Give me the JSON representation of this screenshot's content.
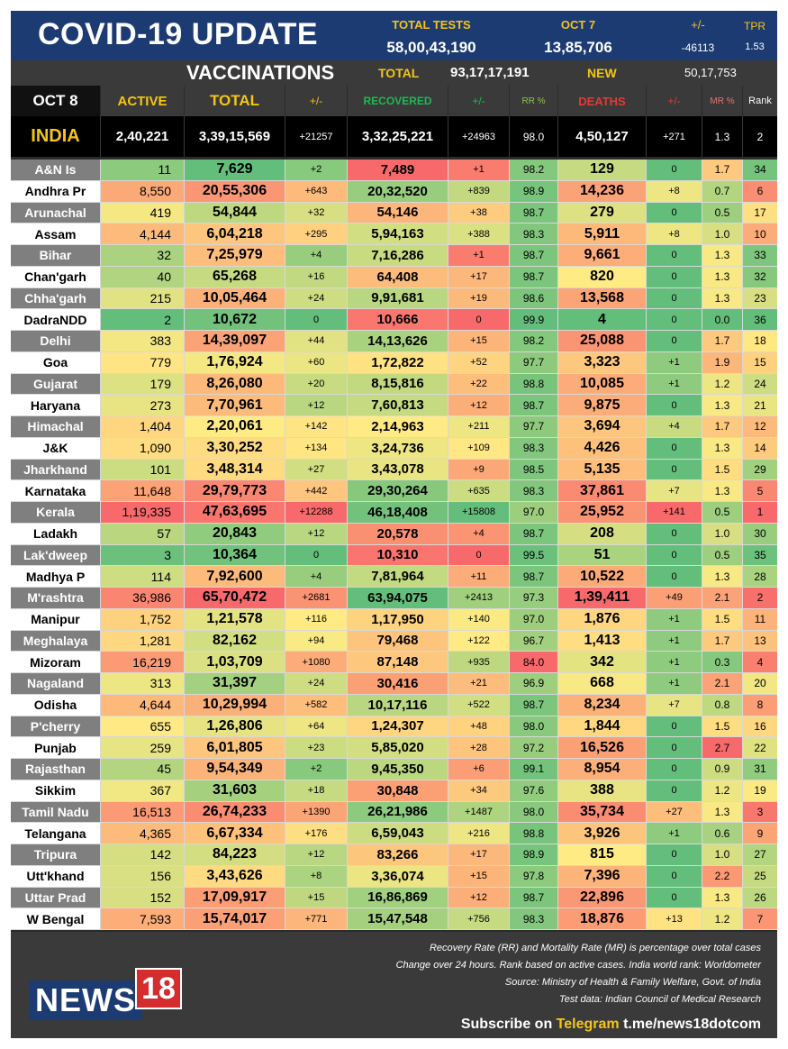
{
  "header": {
    "title": "COVID-19 UPDATE",
    "total_tests_label": "TOTAL TESTS",
    "total_tests_value": "58,00,43,190",
    "date_label": "OCT 7",
    "date_value": "13,85,706",
    "change_label": "+/-",
    "change_value": "-46113",
    "tpr_label": "TPR",
    "tpr_value": "1.53"
  },
  "vaccinations": {
    "title": "VACCINATIONS",
    "total_label": "TOTAL",
    "total_value": "93,17,17,191",
    "new_label": "NEW",
    "new_value": "50,17,753"
  },
  "columns": {
    "date": "OCT 8",
    "active": "ACTIVE",
    "total": "TOTAL",
    "total_change": "+/-",
    "recovered": "RECOVERED",
    "recovered_change": "+/-",
    "rr": "RR %",
    "deaths": "DEATHS",
    "deaths_change": "+/-",
    "mr": "MR %",
    "rank": "Rank"
  },
  "india": {
    "name": "INDIA",
    "active": "2,40,221",
    "total": "3,39,15,569",
    "total_change": "+21257",
    "recovered": "3,32,25,221",
    "recovered_change": "+24963",
    "rr": "98.0",
    "deaths": "4,50,127",
    "deaths_change": "+271",
    "mr": "1.3",
    "rank": "2"
  },
  "states": [
    {
      "name": "A&N Is",
      "active": "11",
      "total": "7,629",
      "total_change": "+2",
      "recovered": "7,489",
      "recovered_change": "+1",
      "rr": "98.2",
      "deaths": "129",
      "deaths_change": "0",
      "mr": "1.7",
      "rank": "34"
    },
    {
      "name": "Andhra Pr",
      "active": "8,550",
      "total": "20,55,306",
      "total_change": "+643",
      "recovered": "20,32,520",
      "recovered_change": "+839",
      "rr": "98.9",
      "deaths": "14,236",
      "deaths_change": "+8",
      "mr": "0.7",
      "rank": "6"
    },
    {
      "name": "Arunachal",
      "active": "419",
      "total": "54,844",
      "total_change": "+32",
      "recovered": "54,146",
      "recovered_change": "+38",
      "rr": "98.7",
      "deaths": "279",
      "deaths_change": "0",
      "mr": "0.5",
      "rank": "17"
    },
    {
      "name": "Assam",
      "active": "4,144",
      "total": "6,04,218",
      "total_change": "+295",
      "recovered": "5,94,163",
      "recovered_change": "+388",
      "rr": "98.3",
      "deaths": "5,911",
      "deaths_change": "+8",
      "mr": "1.0",
      "rank": "10"
    },
    {
      "name": "Bihar",
      "active": "32",
      "total": "7,25,979",
      "total_change": "+4",
      "recovered": "7,16,286",
      "recovered_change": "+1",
      "rr": "98.7",
      "deaths": "9,661",
      "deaths_change": "0",
      "mr": "1.3",
      "rank": "33"
    },
    {
      "name": "Chan'garh",
      "active": "40",
      "total": "65,268",
      "total_change": "+16",
      "recovered": "64,408",
      "recovered_change": "+17",
      "rr": "98.7",
      "deaths": "820",
      "deaths_change": "0",
      "mr": "1.3",
      "rank": "32"
    },
    {
      "name": "Chha'garh",
      "active": "215",
      "total": "10,05,464",
      "total_change": "+24",
      "recovered": "9,91,681",
      "recovered_change": "+19",
      "rr": "98.6",
      "deaths": "13,568",
      "deaths_change": "0",
      "mr": "1.3",
      "rank": "23"
    },
    {
      "name": "DadraNDD",
      "active": "2",
      "total": "10,672",
      "total_change": "0",
      "recovered": "10,666",
      "recovered_change": "0",
      "rr": "99.9",
      "deaths": "4",
      "deaths_change": "0",
      "mr": "0.0",
      "rank": "36"
    },
    {
      "name": "Delhi",
      "active": "383",
      "total": "14,39,097",
      "total_change": "+44",
      "recovered": "14,13,626",
      "recovered_change": "+15",
      "rr": "98.2",
      "deaths": "25,088",
      "deaths_change": "0",
      "mr": "1.7",
      "rank": "18"
    },
    {
      "name": "Goa",
      "active": "779",
      "total": "1,76,924",
      "total_change": "+60",
      "recovered": "1,72,822",
      "recovered_change": "+52",
      "rr": "97.7",
      "deaths": "3,323",
      "deaths_change": "+1",
      "mr": "1.9",
      "rank": "15"
    },
    {
      "name": "Gujarat",
      "active": "179",
      "total": "8,26,080",
      "total_change": "+20",
      "recovered": "8,15,816",
      "recovered_change": "+22",
      "rr": "98.8",
      "deaths": "10,085",
      "deaths_change": "+1",
      "mr": "1.2",
      "rank": "24"
    },
    {
      "name": "Haryana",
      "active": "273",
      "total": "7,70,961",
      "total_change": "+12",
      "recovered": "7,60,813",
      "recovered_change": "+12",
      "rr": "98.7",
      "deaths": "9,875",
      "deaths_change": "0",
      "mr": "1.3",
      "rank": "21"
    },
    {
      "name": "Himachal",
      "active": "1,404",
      "total": "2,20,061",
      "total_change": "+142",
      "recovered": "2,14,963",
      "recovered_change": "+211",
      "rr": "97.7",
      "deaths": "3,694",
      "deaths_change": "+4",
      "mr": "1.7",
      "rank": "12"
    },
    {
      "name": "J&K",
      "active": "1,090",
      "total": "3,30,252",
      "total_change": "+134",
      "recovered": "3,24,736",
      "recovered_change": "+109",
      "rr": "98.3",
      "deaths": "4,426",
      "deaths_change": "0",
      "mr": "1.3",
      "rank": "14"
    },
    {
      "name": "Jharkhand",
      "active": "101",
      "total": "3,48,314",
      "total_change": "+27",
      "recovered": "3,43,078",
      "recovered_change": "+9",
      "rr": "98.5",
      "deaths": "5,135",
      "deaths_change": "0",
      "mr": "1.5",
      "rank": "29"
    },
    {
      "name": "Karnataka",
      "active": "11,648",
      "total": "29,79,773",
      "total_change": "+442",
      "recovered": "29,30,264",
      "recovered_change": "+635",
      "rr": "98.3",
      "deaths": "37,861",
      "deaths_change": "+7",
      "mr": "1.3",
      "rank": "5"
    },
    {
      "name": "Kerala",
      "active": "1,19,335",
      "total": "47,63,695",
      "total_change": "+12288",
      "recovered": "46,18,408",
      "recovered_change": "+15808",
      "rr": "97.0",
      "deaths": "25,952",
      "deaths_change": "+141",
      "mr": "0.5",
      "rank": "1"
    },
    {
      "name": "Ladakh",
      "active": "57",
      "total": "20,843",
      "total_change": "+12",
      "recovered": "20,578",
      "recovered_change": "+4",
      "rr": "98.7",
      "deaths": "208",
      "deaths_change": "0",
      "mr": "1.0",
      "rank": "30"
    },
    {
      "name": "Lak'dweep",
      "active": "3",
      "total": "10,364",
      "total_change": "0",
      "recovered": "10,310",
      "recovered_change": "0",
      "rr": "99.5",
      "deaths": "51",
      "deaths_change": "0",
      "mr": "0.5",
      "rank": "35"
    },
    {
      "name": "Madhya P",
      "active": "114",
      "total": "7,92,600",
      "total_change": "+4",
      "recovered": "7,81,964",
      "recovered_change": "+11",
      "rr": "98.7",
      "deaths": "10,522",
      "deaths_change": "0",
      "mr": "1.3",
      "rank": "28"
    },
    {
      "name": "M'rashtra",
      "active": "36,986",
      "total": "65,70,472",
      "total_change": "+2681",
      "recovered": "63,94,075",
      "recovered_change": "+2413",
      "rr": "97.3",
      "deaths": "1,39,411",
      "deaths_change": "+49",
      "mr": "2.1",
      "rank": "2"
    },
    {
      "name": "Manipur",
      "active": "1,752",
      "total": "1,21,578",
      "total_change": "+116",
      "recovered": "1,17,950",
      "recovered_change": "+140",
      "rr": "97.0",
      "deaths": "1,876",
      "deaths_change": "+1",
      "mr": "1.5",
      "rank": "11"
    },
    {
      "name": "Meghalaya",
      "active": "1,281",
      "total": "82,162",
      "total_change": "+94",
      "recovered": "79,468",
      "recovered_change": "+122",
      "rr": "96.7",
      "deaths": "1,413",
      "deaths_change": "+1",
      "mr": "1.7",
      "rank": "13"
    },
    {
      "name": "Mizoram",
      "active": "16,219",
      "total": "1,03,709",
      "total_change": "+1080",
      "recovered": "87,148",
      "recovered_change": "+935",
      "rr": "84.0",
      "deaths": "342",
      "deaths_change": "+1",
      "mr": "0.3",
      "rank": "4"
    },
    {
      "name": "Nagaland",
      "active": "313",
      "total": "31,397",
      "total_change": "+24",
      "recovered": "30,416",
      "recovered_change": "+21",
      "rr": "96.9",
      "deaths": "668",
      "deaths_change": "+1",
      "mr": "2.1",
      "rank": "20"
    },
    {
      "name": "Odisha",
      "active": "4,644",
      "total": "10,29,994",
      "total_change": "+582",
      "recovered": "10,17,116",
      "recovered_change": "+522",
      "rr": "98.7",
      "deaths": "8,234",
      "deaths_change": "+7",
      "mr": "0.8",
      "rank": "8"
    },
    {
      "name": "P'cherry",
      "active": "655",
      "total": "1,26,806",
      "total_change": "+64",
      "recovered": "1,24,307",
      "recovered_change": "+48",
      "rr": "98.0",
      "deaths": "1,844",
      "deaths_change": "0",
      "mr": "1.5",
      "rank": "16"
    },
    {
      "name": "Punjab",
      "active": "259",
      "total": "6,01,805",
      "total_change": "+23",
      "recovered": "5,85,020",
      "recovered_change": "+28",
      "rr": "97.2",
      "deaths": "16,526",
      "deaths_change": "0",
      "mr": "2.7",
      "rank": "22"
    },
    {
      "name": "Rajasthan",
      "active": "45",
      "total": "9,54,349",
      "total_change": "+2",
      "recovered": "9,45,350",
      "recovered_change": "+6",
      "rr": "99.1",
      "deaths": "8,954",
      "deaths_change": "0",
      "mr": "0.9",
      "rank": "31"
    },
    {
      "name": "Sikkim",
      "active": "367",
      "total": "31,603",
      "total_change": "+18",
      "recovered": "30,848",
      "recovered_change": "+34",
      "rr": "97.6",
      "deaths": "388",
      "deaths_change": "0",
      "mr": "1.2",
      "rank": "19"
    },
    {
      "name": "Tamil Nadu",
      "active": "16,513",
      "total": "26,74,233",
      "total_change": "+1390",
      "recovered": "26,21,986",
      "recovered_change": "+1487",
      "rr": "98.0",
      "deaths": "35,734",
      "deaths_change": "+27",
      "mr": "1.3",
      "rank": "3"
    },
    {
      "name": "Telangana",
      "active": "4,365",
      "total": "6,67,334",
      "total_change": "+176",
      "recovered": "6,59,043",
      "recovered_change": "+216",
      "rr": "98.8",
      "deaths": "3,926",
      "deaths_change": "+1",
      "mr": "0.6",
      "rank": "9"
    },
    {
      "name": "Tripura",
      "active": "142",
      "total": "84,223",
      "total_change": "+12",
      "recovered": "83,266",
      "recovered_change": "+17",
      "rr": "98.9",
      "deaths": "815",
      "deaths_change": "0",
      "mr": "1.0",
      "rank": "27"
    },
    {
      "name": "Utt'khand",
      "active": "156",
      "total": "3,43,626",
      "total_change": "+8",
      "recovered": "3,36,074",
      "recovered_change": "+15",
      "rr": "97.8",
      "deaths": "7,396",
      "deaths_change": "0",
      "mr": "2.2",
      "rank": "25"
    },
    {
      "name": "Uttar Prad",
      "active": "152",
      "total": "17,09,917",
      "total_change": "+15",
      "recovered": "16,86,869",
      "recovered_change": "+12",
      "rr": "98.7",
      "deaths": "22,896",
      "deaths_change": "0",
      "mr": "1.3",
      "rank": "26"
    },
    {
      "name": "W Bengal",
      "active": "7,593",
      "total": "15,74,017",
      "total_change": "+771",
      "recovered": "15,47,548",
      "recovered_change": "+756",
      "rr": "98.3",
      "deaths": "18,876",
      "deaths_change": "+13",
      "mr": "1.2",
      "rank": "7"
    }
  ],
  "footer": {
    "logo_text": "NEWS",
    "logo_number": "18",
    "notes": [
      "Recovery Rate (RR) and Mortality Rate (MR) is percentage over total cases",
      "Change over 24 hours. Rank based on active cases. India world rank: Worldometer",
      "Source: Ministry of Health & Family Welfare, Govt. of India",
      "Test data: Indian Council of Medical Research"
    ],
    "subscribe_prefix": "Subscribe on ",
    "subscribe_platform": "Telegram",
    "subscribe_link": "t.me/news18dotcom"
  },
  "colors": {
    "title_bar": "#1d3b73",
    "accent_yellow": "#f5c518",
    "recovered_green": "#1db954",
    "deaths_red": "#e53935",
    "rr_green": "#8bc34a",
    "mr_red": "#e57373",
    "scale_red": "#f8696b",
    "scale_yellow": "#ffeb84",
    "scale_green": "#63be7b"
  }
}
